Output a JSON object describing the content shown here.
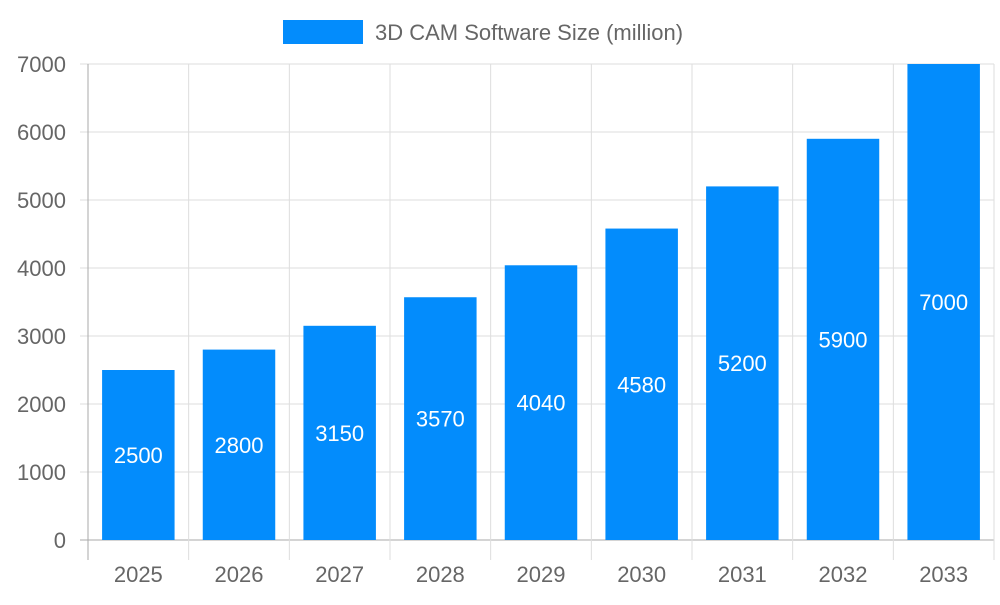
{
  "chart_data": {
    "type": "bar",
    "categories": [
      "2025",
      "2026",
      "2027",
      "2028",
      "2029",
      "2030",
      "2031",
      "2032",
      "2033"
    ],
    "series": [
      {
        "name": "3D CAM Software Size (million)",
        "values": [
          2500,
          2800,
          3150,
          3570,
          4040,
          4580,
          5200,
          5900,
          7000
        ],
        "color": "#038cfc"
      }
    ],
    "ylim": [
      0,
      7000
    ],
    "yticks": [
      0,
      1000,
      2000,
      3000,
      4000,
      5000,
      6000,
      7000
    ],
    "grid": true,
    "legend": "top",
    "data_labels": true
  }
}
